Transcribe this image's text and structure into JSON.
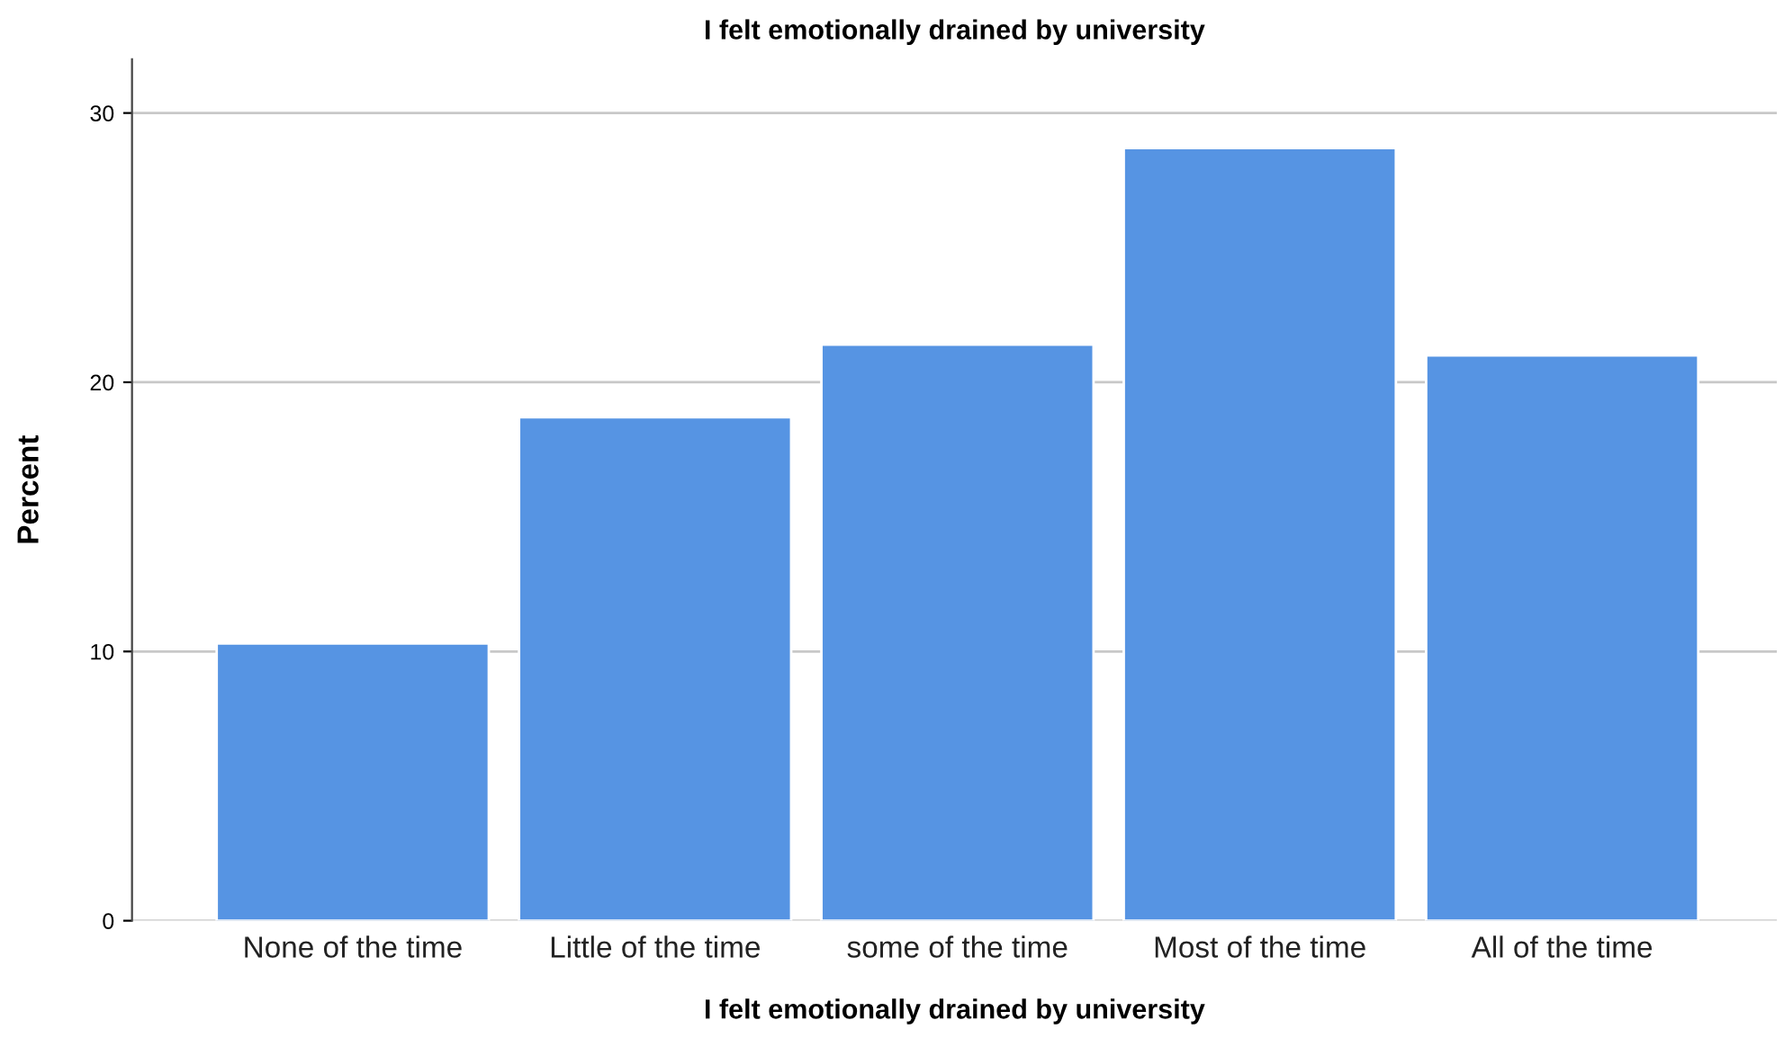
{
  "chart_data": {
    "type": "bar",
    "title": "I felt emotionally drained by university",
    "xlabel": "I felt emotionally drained by university",
    "ylabel": "Percent",
    "categories": [
      "None of the time",
      "Little of the time",
      "some of the time",
      "Most of the time",
      "All of the time"
    ],
    "values": [
      10.3,
      18.7,
      21.4,
      28.7,
      21.0
    ],
    "color": "#5694e3",
    "ylim": [
      0,
      32
    ],
    "yticks": [
      0,
      10,
      20,
      30
    ],
    "grid": "y",
    "legend": false
  }
}
